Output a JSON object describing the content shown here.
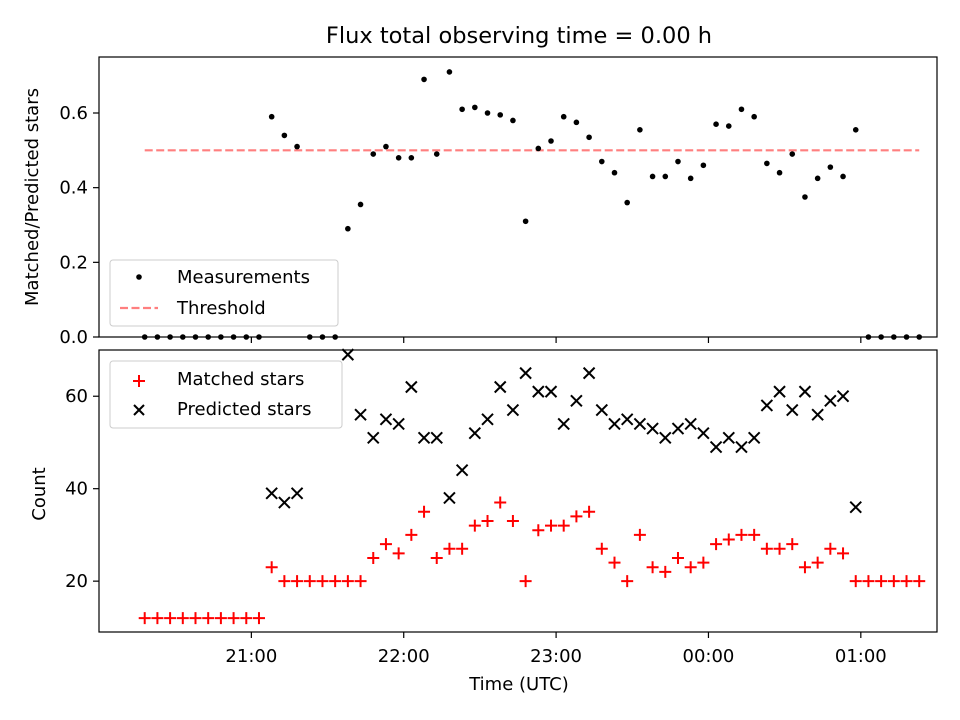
{
  "figure": {
    "title": "Flux total observing time = 0.00 h"
  },
  "chart_data": [
    {
      "type": "scatter",
      "panel": "top",
      "title": "Flux total observing time = 0.00 h",
      "xlabel": "",
      "ylabel": "Matched/Predicted stars",
      "ylim": [
        0,
        0.75
      ],
      "yticks": [
        0.0,
        0.2,
        0.4,
        0.6
      ],
      "ytick_labels": [
        "0.0",
        "0.2",
        "0.4",
        "0.6"
      ],
      "grid": false,
      "legend": "lower-left",
      "series": [
        {
          "name": "Measurements",
          "kind": "scatter",
          "marker": "dot",
          "color": "#000000",
          "x": [
            "20:18",
            "20:23",
            "20:28",
            "20:33",
            "20:38",
            "20:43",
            "20:48",
            "20:53",
            "20:58",
            "21:03",
            "21:08",
            "21:13",
            "21:18",
            "21:23",
            "21:28",
            "21:33",
            "21:38",
            "21:43",
            "21:48",
            "21:53",
            "21:58",
            "22:03",
            "22:08",
            "22:13",
            "22:18",
            "22:23",
            "22:28",
            "22:33",
            "22:38",
            "22:43",
            "22:48",
            "22:53",
            "22:58",
            "23:03",
            "23:08",
            "23:13",
            "23:18",
            "23:23",
            "23:28",
            "23:33",
            "23:38",
            "23:43",
            "23:48",
            "23:53",
            "23:58",
            "00:03",
            "00:08",
            "00:13",
            "00:18",
            "00:23",
            "00:28",
            "00:33",
            "00:38",
            "00:43",
            "00:48",
            "00:53",
            "00:58",
            "01:03",
            "01:08",
            "01:13",
            "01:18",
            "01:23"
          ],
          "y": [
            0.0,
            0.0,
            0.0,
            0.0,
            0.0,
            0.0,
            0.0,
            0.0,
            0.0,
            0.0,
            0.59,
            0.54,
            0.51,
            0.0,
            0.0,
            0.0,
            0.29,
            0.355,
            0.49,
            0.51,
            0.48,
            0.48,
            0.69,
            0.49,
            0.71,
            0.61,
            0.615,
            0.6,
            0.595,
            0.58,
            0.31,
            0.505,
            0.525,
            0.59,
            0.575,
            0.535,
            0.47,
            0.44,
            0.36,
            0.555,
            0.43,
            0.43,
            0.47,
            0.425,
            0.46,
            0.57,
            0.565,
            0.61,
            0.59,
            0.465,
            0.44,
            0.49,
            0.375,
            0.425,
            0.455,
            0.43,
            0.555,
            0.0,
            0.0,
            0.0,
            0.0,
            0.0
          ]
        },
        {
          "name": "Threshold",
          "kind": "line",
          "style": "dashed",
          "color": "#ff7f7f",
          "x": [
            "20:18",
            "01:23"
          ],
          "y": [
            0.5,
            0.5
          ]
        }
      ]
    },
    {
      "type": "scatter",
      "panel": "bottom",
      "xlabel": "Time (UTC)",
      "ylabel": "Count",
      "ylim": [
        9,
        70
      ],
      "yticks": [
        20,
        40,
        60
      ],
      "ytick_labels": [
        "20",
        "40",
        "60"
      ],
      "xticks": [
        "21:00",
        "22:00",
        "23:00",
        "00:00",
        "01:00"
      ],
      "xlim": [
        "20:00",
        "01:30"
      ],
      "grid": false,
      "legend": "upper-left",
      "series": [
        {
          "name": "Matched stars",
          "kind": "scatter",
          "marker": "plus",
          "color": "#ff0000",
          "x": [
            "20:18",
            "20:23",
            "20:28",
            "20:33",
            "20:38",
            "20:43",
            "20:48",
            "20:53",
            "20:58",
            "21:03",
            "21:08",
            "21:13",
            "21:18",
            "21:23",
            "21:28",
            "21:33",
            "21:38",
            "21:43",
            "21:48",
            "21:53",
            "21:58",
            "22:03",
            "22:08",
            "22:13",
            "22:18",
            "22:23",
            "22:28",
            "22:33",
            "22:38",
            "22:43",
            "22:48",
            "22:53",
            "22:58",
            "23:03",
            "23:08",
            "23:13",
            "23:18",
            "23:23",
            "23:28",
            "23:33",
            "23:38",
            "23:43",
            "23:48",
            "23:53",
            "23:58",
            "00:03",
            "00:08",
            "00:13",
            "00:18",
            "00:23",
            "00:28",
            "00:33",
            "00:38",
            "00:43",
            "00:48",
            "00:53",
            "00:58",
            "01:03",
            "01:08",
            "01:13",
            "01:18",
            "01:23"
          ],
          "y": [
            12,
            12,
            12,
            12,
            12,
            12,
            12,
            12,
            12,
            12,
            23,
            20,
            20,
            20,
            20,
            20,
            20,
            20,
            25,
            28,
            26,
            30,
            35,
            25,
            27,
            27,
            32,
            33,
            37,
            33,
            20,
            31,
            32,
            32,
            34,
            35,
            27,
            24,
            20,
            30,
            23,
            22,
            25,
            23,
            24,
            28,
            29,
            30,
            30,
            27,
            27,
            28,
            23,
            24,
            27,
            26,
            20,
            20,
            20,
            20,
            20,
            20
          ]
        },
        {
          "name": "Predicted stars",
          "kind": "scatter",
          "marker": "x",
          "color": "#000000",
          "x": [
            "21:08",
            "21:13",
            "21:18",
            "21:38",
            "21:43",
            "21:48",
            "21:53",
            "21:58",
            "22:03",
            "22:08",
            "22:13",
            "22:18",
            "22:23",
            "22:28",
            "22:33",
            "22:38",
            "22:43",
            "22:48",
            "22:53",
            "22:58",
            "23:03",
            "23:08",
            "23:13",
            "23:18",
            "23:23",
            "23:28",
            "23:33",
            "23:38",
            "23:43",
            "23:48",
            "23:53",
            "23:58",
            "00:03",
            "00:08",
            "00:13",
            "00:18",
            "00:23",
            "00:28",
            "00:33",
            "00:38",
            "00:43",
            "00:48",
            "00:53",
            "00:58"
          ],
          "y": [
            39,
            37,
            39,
            69,
            56,
            51,
            55,
            54,
            62,
            51,
            51,
            38,
            44,
            52,
            55,
            62,
            57,
            65,
            61,
            61,
            54,
            59,
            65,
            57,
            54,
            55,
            54,
            53,
            51,
            53,
            54,
            52,
            49,
            51,
            49,
            51,
            58,
            61,
            57,
            61,
            56,
            59,
            60,
            36
          ]
        }
      ]
    }
  ]
}
